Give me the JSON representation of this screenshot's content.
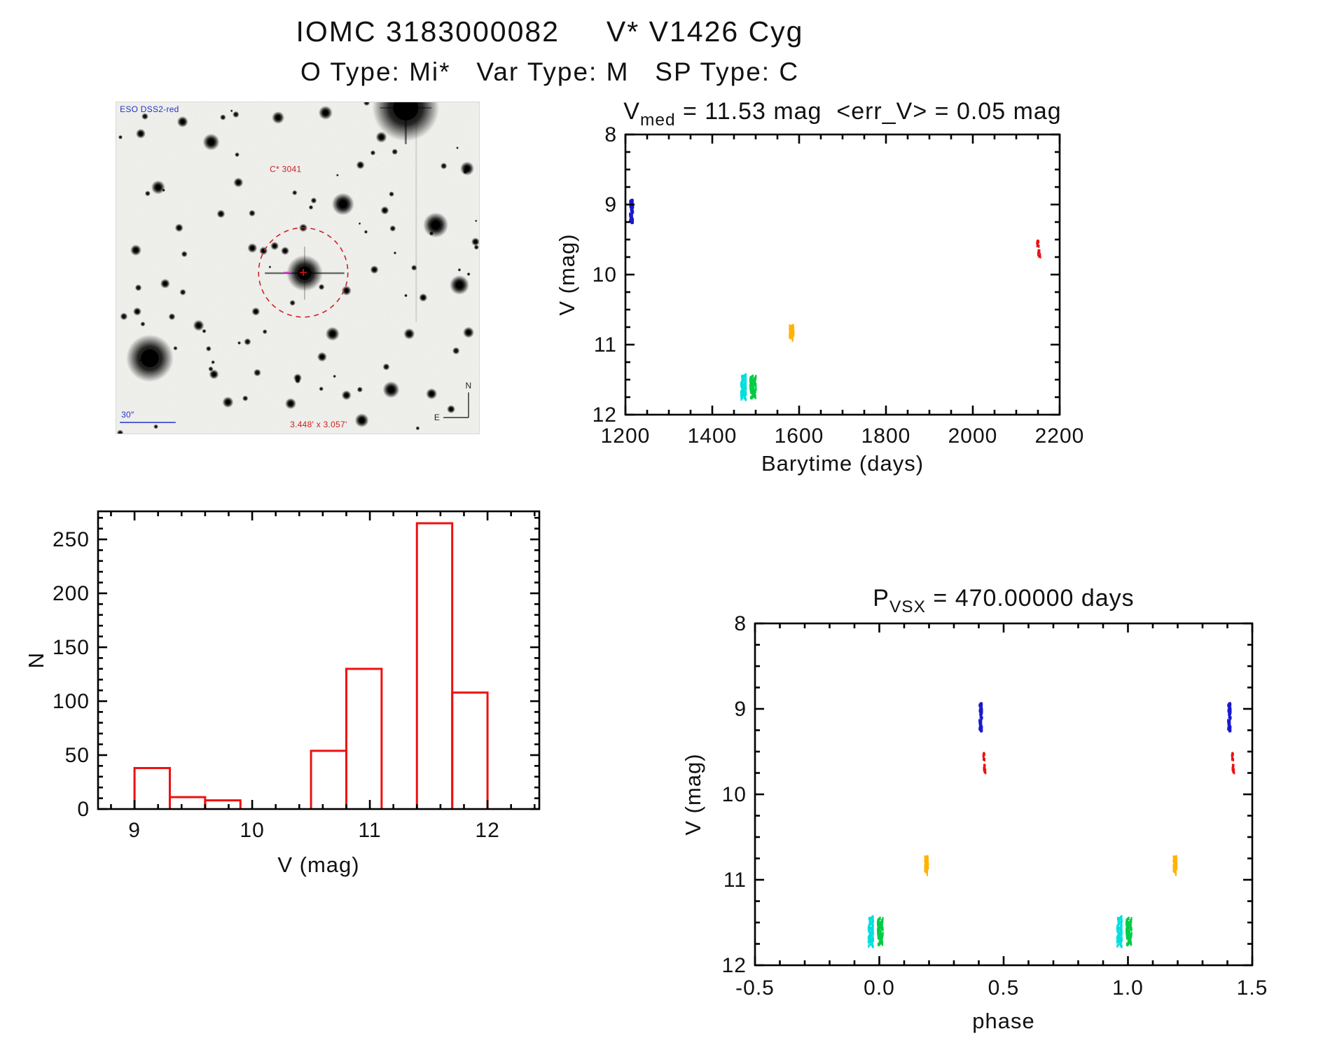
{
  "page_title": {
    "line1": "IOMC 3183000082     V* V1426 Cyg",
    "line2": "O Type: Mi*   Var Type: M   SP Type: C"
  },
  "finder_chart": {
    "survey_label": "ESO DSS2-red",
    "star_label": "C* 3041",
    "scale_label": "30″",
    "fov_label": "3.448' x 3.057'",
    "compass_north": "N",
    "compass_east": "E",
    "circle_color": "#cc2222"
  },
  "chart_data": [
    {
      "id": "lightcurve",
      "type": "scatter",
      "title_parts": [
        {
          "text": "V"
        },
        {
          "sub": "med"
        },
        {
          "text": " = 11.53 mag  <err_V> = 0.05 mag"
        }
      ],
      "xlabel": "Barytime (days)",
      "ylabel": "V (mag)",
      "xlim": [
        1200,
        2200
      ],
      "ylim": [
        8,
        12
      ],
      "y_down": true,
      "xticks": [
        1200,
        1400,
        1600,
        1800,
        2000,
        2200
      ],
      "xtick_labels": [
        "1200",
        "1400",
        "1600",
        "1800",
        "2000",
        "2200"
      ],
      "xminor_step": 50,
      "yticks": [
        8,
        9,
        10,
        11,
        12
      ],
      "ytick_labels": [
        "8",
        "9",
        "10",
        "11",
        "12"
      ],
      "yminor_step": 0.25,
      "repeat_offsets": [
        0
      ],
      "series": [
        {
          "name": "epoch-blue",
          "color": "#1a1acc",
          "clusters": [
            {
              "x": 1214,
              "xs": 4,
              "v1": 8.92,
              "v2": 9.26,
              "n": 70
            }
          ]
        },
        {
          "name": "epoch-cyan",
          "color": "#00dede",
          "clusters": [
            {
              "x": 1472,
              "xs": 6,
              "v1": 11.43,
              "v2": 11.78,
              "n": 85
            }
          ]
        },
        {
          "name": "epoch-green",
          "color": "#00cc44",
          "clusters": [
            {
              "x": 1494,
              "xs": 7,
              "v1": 11.45,
              "v2": 11.76,
              "n": 85
            }
          ]
        },
        {
          "name": "epoch-orange",
          "color": "#ffb300",
          "clusters": [
            {
              "x": 1583,
              "xs": 5,
              "v1": 10.73,
              "v2": 10.94,
              "n": 50
            }
          ]
        },
        {
          "name": "epoch-red",
          "color": "#ee1111",
          "clusters": [
            {
              "x": 2150,
              "xs": 3,
              "v1": 9.52,
              "v2": 9.6,
              "n": 12
            },
            {
              "x": 2153,
              "xs": 3,
              "v1": 9.65,
              "v2": 9.75,
              "n": 12
            }
          ]
        }
      ]
    },
    {
      "id": "histogram",
      "type": "bar",
      "xlabel": "V (mag)",
      "ylabel": "N",
      "color": "#ee1111",
      "bin_start": 9.0,
      "bin_width": 0.3,
      "counts": [
        38,
        11,
        8,
        0,
        0,
        54,
        130,
        0,
        265,
        108
      ],
      "xlim": [
        8.69,
        12.44
      ],
      "ylim": [
        0,
        276
      ],
      "y_down": false,
      "xticks": [
        9,
        10,
        11,
        12
      ],
      "xtick_labels": [
        "9",
        "10",
        "11",
        "12"
      ],
      "xminor_step": 0.2,
      "yticks": [
        0,
        50,
        100,
        150,
        200,
        250
      ],
      "ytick_labels": [
        "0",
        "50",
        "100",
        "150",
        "200",
        "250"
      ],
      "yminor_step": 10
    },
    {
      "id": "phase",
      "type": "scatter",
      "title_parts": [
        {
          "text": "P"
        },
        {
          "sub": "VSX"
        },
        {
          "text": " = 470.00000 days"
        }
      ],
      "xlabel": "phase",
      "ylabel": "V (mag)",
      "xlim": [
        -0.5,
        1.5
      ],
      "ylim": [
        8,
        12
      ],
      "y_down": true,
      "xticks": [
        -0.5,
        0,
        0.5,
        1,
        1.5
      ],
      "xtick_labels": [
        "-0.5",
        "0.0",
        "0.5",
        "1.0",
        "1.5"
      ],
      "xminor_step": 0.1,
      "yticks": [
        8,
        9,
        10,
        11,
        12
      ],
      "ytick_labels": [
        "8",
        "9",
        "10",
        "11",
        "12"
      ],
      "yminor_step": 0.25,
      "repeat_offsets": [
        0,
        1
      ],
      "series": [
        {
          "name": "phase-blue",
          "color": "#1a1acc",
          "clusters": [
            {
              "x": 0.408,
              "xs": 0.006,
              "v1": 8.92,
              "v2": 9.26,
              "n": 70
            }
          ]
        },
        {
          "name": "phase-cyan",
          "color": "#00dede",
          "clusters": [
            {
              "x": -0.034,
              "xs": 0.01,
              "v1": 11.43,
              "v2": 11.78,
              "n": 85
            }
          ]
        },
        {
          "name": "phase-green",
          "color": "#00cc44",
          "clusters": [
            {
              "x": 0.004,
              "xs": 0.011,
              "v1": 11.45,
              "v2": 11.76,
              "n": 85
            }
          ]
        },
        {
          "name": "phase-orange",
          "color": "#ffb300",
          "clusters": [
            {
              "x": 0.19,
              "xs": 0.007,
              "v1": 10.73,
              "v2": 10.94,
              "n": 50
            }
          ]
        },
        {
          "name": "phase-red",
          "color": "#ee1111",
          "clusters": [
            {
              "x": 0.421,
              "xs": 0.004,
              "v1": 9.52,
              "v2": 9.6,
              "n": 12
            },
            {
              "x": 0.424,
              "xs": 0.004,
              "v1": 9.65,
              "v2": 9.75,
              "n": 12
            }
          ]
        }
      ]
    }
  ]
}
